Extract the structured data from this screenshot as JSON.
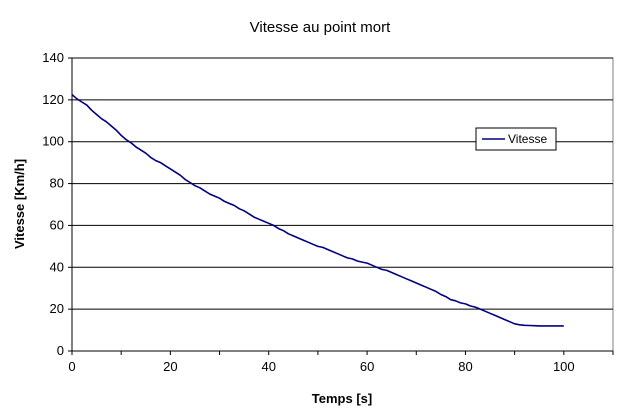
{
  "chart_data": {
    "type": "line",
    "title": "Vitesse au point mort",
    "xlabel": "Temps [s]",
    "ylabel": "Vitesse [Km/h]",
    "xlim": [
      0,
      110
    ],
    "ylim": [
      0,
      140
    ],
    "x_ticks": [
      0,
      20,
      40,
      60,
      80,
      100
    ],
    "y_ticks": [
      0,
      20,
      40,
      60,
      80,
      100,
      120,
      140
    ],
    "grid": "horizontal major gridlines",
    "legend": "right",
    "series": [
      {
        "name": "Vitesse",
        "color": "#000080",
        "x": [
          0,
          1,
          2,
          3,
          4,
          5,
          6,
          7,
          8,
          9,
          10,
          11,
          12,
          13,
          14,
          15,
          16,
          17,
          18,
          19,
          20,
          21,
          22,
          23,
          24,
          25,
          26,
          27,
          28,
          29,
          30,
          31,
          32,
          33,
          34,
          35,
          36,
          37,
          38,
          39,
          40,
          41,
          42,
          43,
          44,
          45,
          46,
          47,
          48,
          49,
          50,
          51,
          52,
          53,
          54,
          55,
          56,
          57,
          58,
          59,
          60,
          61,
          62,
          63,
          64,
          65,
          66,
          67,
          68,
          69,
          70,
          71,
          72,
          73,
          74,
          75,
          76,
          77,
          78,
          79,
          80,
          81,
          82,
          83,
          84,
          85,
          86,
          87,
          88,
          89,
          90,
          91,
          92,
          93,
          94,
          95,
          96,
          97,
          98,
          99,
          100
        ],
        "values": [
          122.5,
          120.5,
          119.0,
          117.5,
          115.0,
          113.0,
          111.0,
          109.5,
          107.5,
          105.5,
          103.0,
          101.0,
          99.5,
          97.5,
          96.0,
          94.5,
          92.5,
          91.0,
          90.0,
          88.5,
          87.0,
          85.5,
          84.0,
          82.0,
          80.5,
          79.0,
          78.0,
          76.5,
          75.0,
          74.0,
          73.0,
          71.5,
          70.5,
          69.5,
          68.0,
          67.0,
          65.5,
          64.0,
          63.0,
          62.0,
          61.0,
          60.0,
          58.5,
          57.5,
          56.0,
          55.0,
          54.0,
          53.0,
          52.0,
          51.0,
          50.0,
          49.5,
          48.5,
          47.5,
          46.5,
          45.5,
          44.5,
          44.0,
          43.0,
          42.5,
          42.0,
          41.0,
          40.0,
          39.0,
          38.5,
          37.5,
          36.5,
          35.5,
          34.5,
          33.5,
          32.5,
          31.5,
          30.5,
          29.5,
          28.5,
          27.0,
          26.0,
          24.5,
          24.0,
          23.0,
          22.5,
          21.5,
          21.0,
          20.0,
          19.0,
          18.0,
          17.0,
          16.0,
          15.0,
          14.0,
          13.0,
          12.5,
          12.3,
          12.2,
          12.1,
          12.0,
          12.0,
          12.0,
          12.0,
          12.0,
          12.0
        ]
      }
    ]
  }
}
